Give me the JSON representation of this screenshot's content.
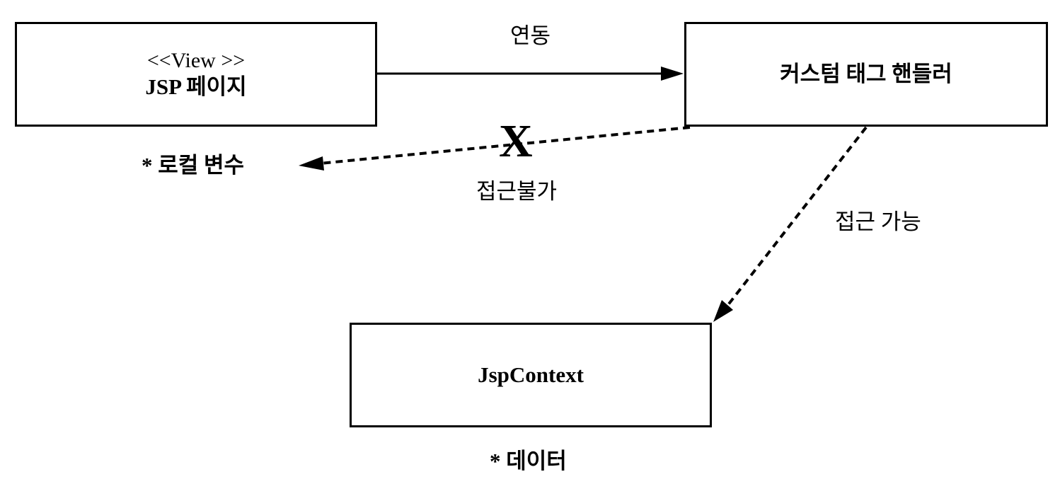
{
  "boxes": {
    "jsp_page": {
      "stereotype": "<<View >>",
      "title": "JSP 페이지"
    },
    "tag_handler": {
      "title": "커스텀 태그 핸들러"
    },
    "jsp_context": {
      "title": "JspContext"
    }
  },
  "connectors": {
    "link": {
      "label": "연동",
      "style": "solid"
    },
    "denied": {
      "label": "접근불가",
      "mark": "X",
      "style": "dashed"
    },
    "allowed": {
      "label": "접근 가능",
      "style": "dashed"
    }
  },
  "notes": {
    "local_vars": "* 로컬 변수",
    "data": "* 데이터"
  },
  "colors": {
    "line": "#000000",
    "background": "#ffffff"
  }
}
